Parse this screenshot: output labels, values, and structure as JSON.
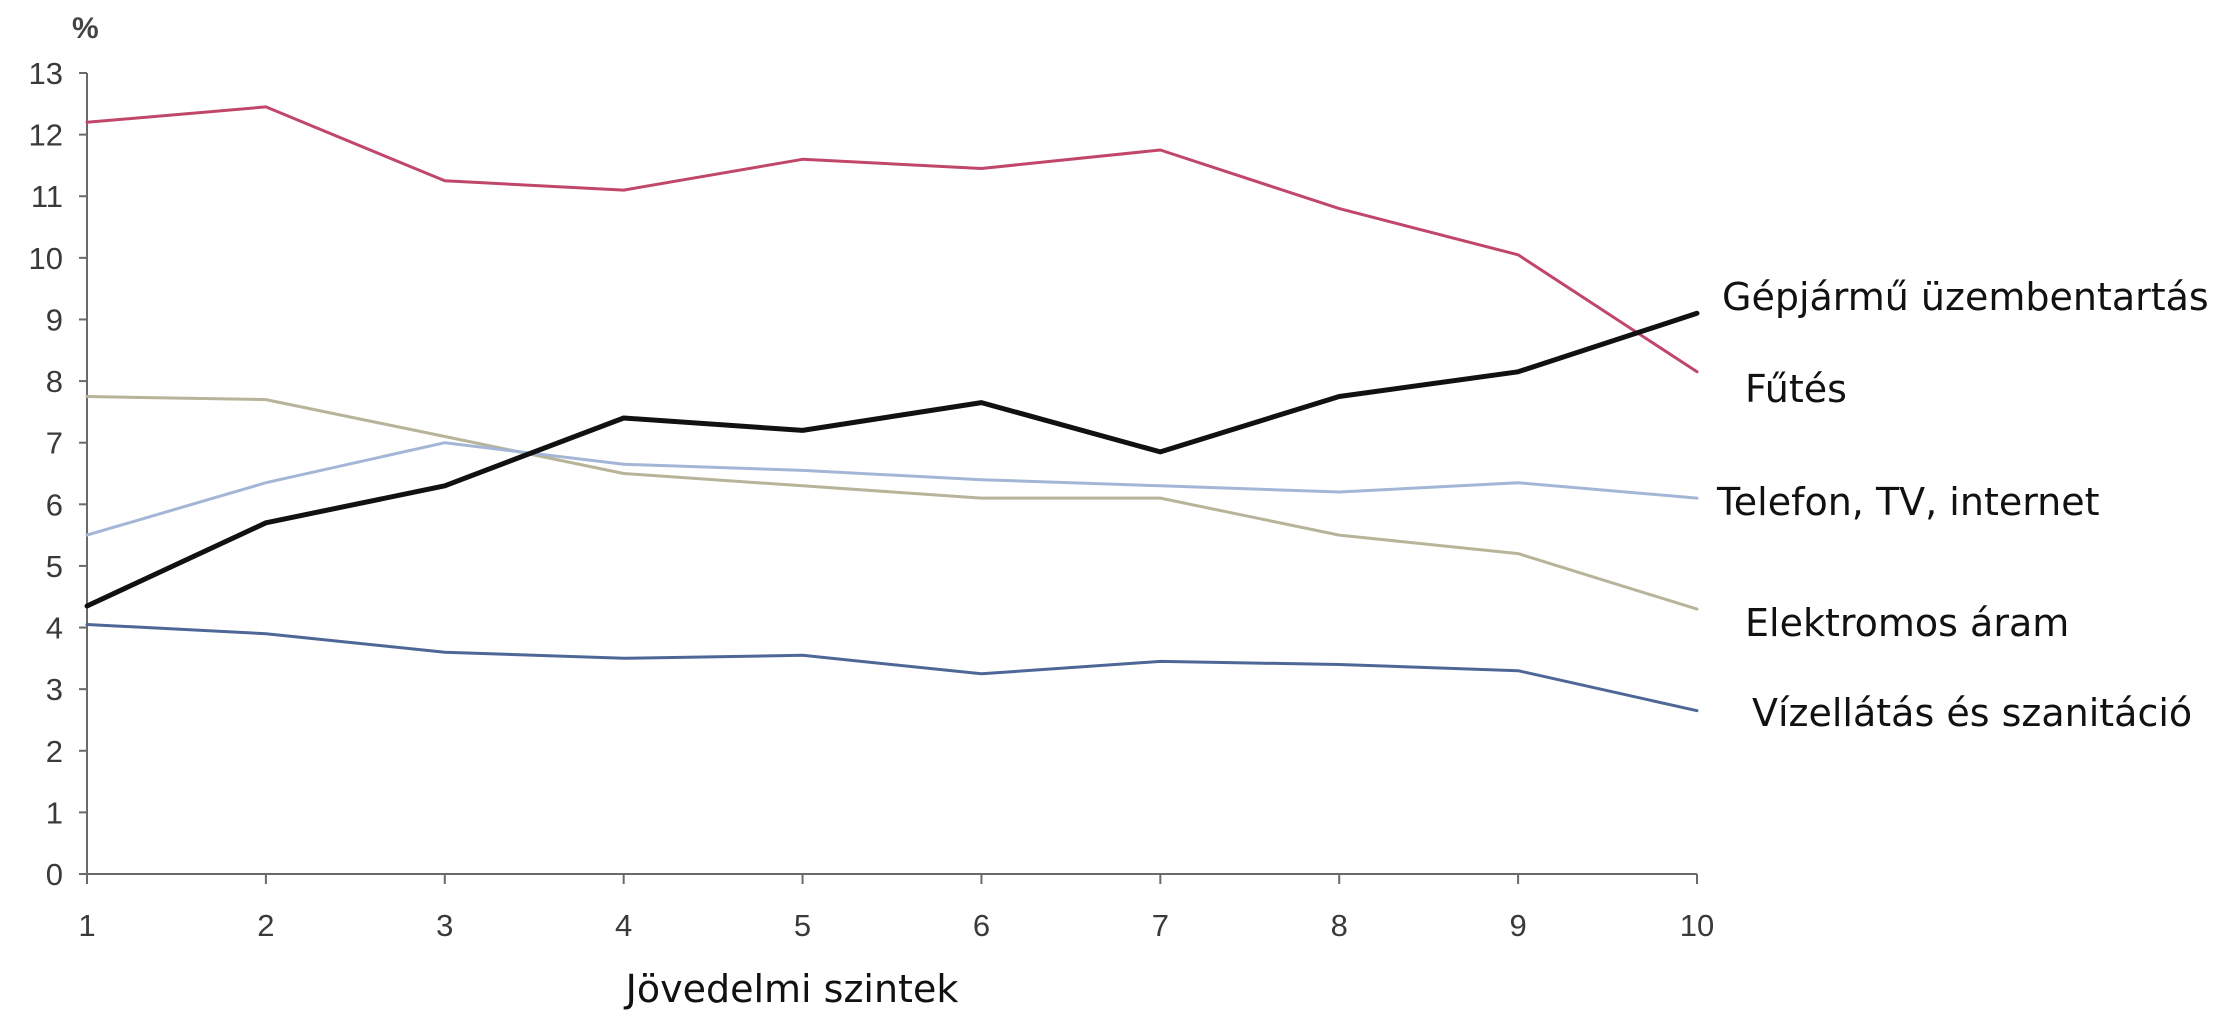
{
  "chart_data": {
    "type": "line",
    "ylabel": "%",
    "xlabel": "Jövedelmi szintek",
    "x": [
      1,
      2,
      3,
      4,
      5,
      6,
      7,
      8,
      9,
      10
    ],
    "x_tick_labels": [
      "1",
      "2",
      "3",
      "4",
      "5",
      "6",
      "7",
      "8",
      "9",
      "10"
    ],
    "ylim": [
      0,
      13
    ],
    "y_tick_labels": [
      "0",
      "1",
      "2",
      "3",
      "4",
      "5",
      "6",
      "7",
      "8",
      "9",
      "10",
      "11",
      "12",
      "13"
    ],
    "grid": false,
    "legend": "direct labels at right end of lines",
    "series": [
      {
        "name": "Gépjármű üzembentartás",
        "color": "#111111",
        "values": [
          4.35,
          5.7,
          6.3,
          7.4,
          7.2,
          7.65,
          6.85,
          7.75,
          8.15,
          9.1
        ]
      },
      {
        "name": "Fűtés",
        "color": "#c0476a",
        "values": [
          12.2,
          12.45,
          11.25,
          11.1,
          11.6,
          11.45,
          11.75,
          10.8,
          10.05,
          8.15
        ]
      },
      {
        "name": "Telefon, TV, internet",
        "color": "#a4b6d6",
        "values": [
          5.5,
          6.35,
          7.0,
          6.65,
          6.55,
          6.4,
          6.3,
          6.2,
          6.35,
          6.1
        ]
      },
      {
        "name": "Elektromos áram",
        "color": "#b8b49a",
        "values": [
          7.75,
          7.7,
          7.1,
          6.5,
          6.3,
          6.1,
          6.1,
          5.5,
          5.2,
          4.3
        ]
      },
      {
        "name": "Vízellátás és szanitáció",
        "color": "#4e6797",
        "values": [
          4.05,
          3.9,
          3.6,
          3.5,
          3.55,
          3.25,
          3.45,
          3.4,
          3.3,
          2.65
        ]
      }
    ]
  }
}
